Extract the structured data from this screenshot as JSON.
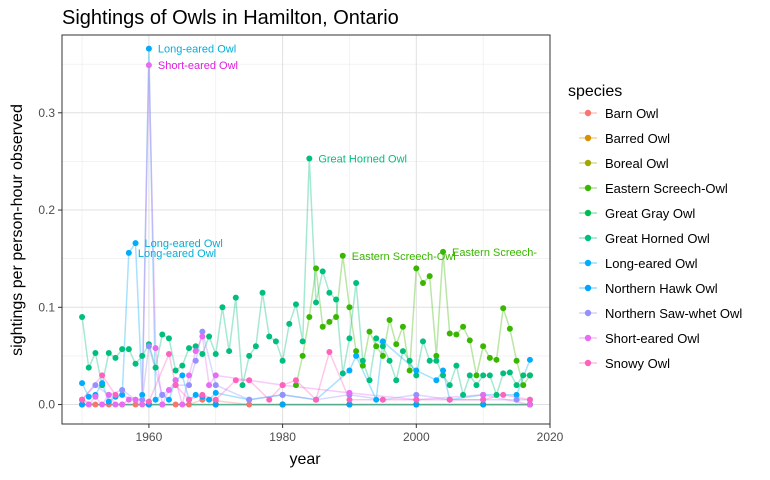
{
  "chart_data": {
    "type": "line",
    "title": "Sightings of Owls in Hamilton, Ontario",
    "xlabel": "year",
    "ylabel": "sightings per person-hour observed",
    "xlim": [
      1947,
      2020
    ],
    "ylim": [
      -0.02,
      0.38
    ],
    "x_ticks": [
      1960,
      1980,
      2000,
      2020
    ],
    "y_ticks": [
      0.0,
      0.1,
      0.2,
      0.3
    ],
    "y_tick_labels": [
      "0.0",
      "0.1",
      "0.2",
      "0.3"
    ],
    "grid": true,
    "legend_title": "species",
    "legend_position": "right",
    "series": [
      {
        "name": "Barn Owl",
        "color": "#F8766D",
        "x": [
          1950,
          1952,
          1954,
          1956,
          1958,
          1960,
          1962,
          1964,
          1966,
          1968,
          1970,
          1975,
          1980,
          1990,
          2000,
          2010,
          2017
        ],
        "y": [
          0.005,
          0,
          0,
          0,
          0,
          0,
          0,
          0,
          0,
          0.005,
          0.004,
          0,
          0,
          0,
          0,
          0,
          0
        ]
      },
      {
        "name": "Barred Owl",
        "color": "#D89000",
        "x": [
          1950,
          1960,
          1970,
          1980,
          1990,
          2000,
          2010,
          2017
        ],
        "y": [
          0,
          0,
          0,
          0,
          0,
          0,
          0,
          0
        ]
      },
      {
        "name": "Boreal Owl",
        "color": "#A3A500",
        "x": [
          1950,
          1960,
          1970,
          1980,
          1990,
          2000,
          2010,
          2017
        ],
        "y": [
          0,
          0,
          0,
          0,
          0,
          0,
          0,
          0
        ]
      },
      {
        "name": "Eastern Screech-Owl",
        "color": "#39B600",
        "x": [
          1982,
          1983,
          1984,
          1985,
          1986,
          1987,
          1988,
          1989,
          1990,
          1991,
          1992,
          1993,
          1994,
          1995,
          1996,
          1997,
          1998,
          1999,
          2000,
          2001,
          2002,
          2003,
          2004,
          2005,
          2006,
          2007,
          2008,
          2009,
          2010,
          2011,
          2012,
          2013,
          2014,
          2015,
          2016,
          2017
        ],
        "y": [
          0.02,
          0.05,
          0.09,
          0.14,
          0.08,
          0.085,
          0.09,
          0.153,
          0.1,
          0.055,
          0.04,
          0.075,
          0.06,
          0.05,
          0.087,
          0.062,
          0.08,
          0.035,
          0.14,
          0.125,
          0.132,
          0.05,
          0.157,
          0.073,
          0.072,
          0.08,
          0.066,
          0.03,
          0.06,
          0.048,
          0.046,
          0.099,
          0.078,
          0.045,
          0.02,
          0.03
        ]
      },
      {
        "name": "Great Gray Owl",
        "color": "#00BB4E",
        "x": [
          1950,
          1960,
          1970,
          1980,
          1990,
          2000,
          2010,
          2017
        ],
        "y": [
          0,
          0,
          0,
          0,
          0,
          0,
          0,
          0
        ]
      },
      {
        "name": "Great Horned Owl",
        "color": "#00BF7D",
        "x": [
          1950,
          1951,
          1952,
          1953,
          1954,
          1955,
          1956,
          1957,
          1958,
          1959,
          1960,
          1961,
          1962,
          1963,
          1964,
          1965,
          1966,
          1967,
          1968,
          1969,
          1970,
          1971,
          1972,
          1973,
          1974,
          1975,
          1976,
          1977,
          1978,
          1979,
          1980,
          1981,
          1982,
          1983,
          1984,
          1985,
          1986,
          1987,
          1988,
          1989,
          1990,
          1991,
          1992,
          1993,
          1994,
          1995,
          1996,
          1997,
          1998,
          1999,
          2000,
          2001,
          2002,
          2003,
          2004,
          2005,
          2006,
          2007,
          2008,
          2009,
          2010,
          2011,
          2012,
          2013,
          2014,
          2015,
          2016,
          2017
        ],
        "y": [
          0.09,
          0.038,
          0.053,
          0.02,
          0.053,
          0.048,
          0.057,
          0.057,
          0.042,
          0.05,
          0.062,
          0.038,
          0.072,
          0.068,
          0.035,
          0.04,
          0.058,
          0.06,
          0.052,
          0.07,
          0.052,
          0.1,
          0.055,
          0.11,
          0.02,
          0.05,
          0.06,
          0.115,
          0.07,
          0.065,
          0.045,
          0.083,
          0.103,
          0.065,
          0.253,
          0.105,
          0.137,
          0.115,
          0.108,
          0.032,
          0.068,
          0.125,
          0.045,
          0.025,
          0.068,
          0.06,
          0.045,
          0.025,
          0.055,
          0.045,
          0.03,
          0.065,
          0.045,
          0.045,
          0.03,
          0.02,
          0.04,
          0.01,
          0.03,
          0.02,
          0.03,
          0.03,
          0.01,
          0.032,
          0.033,
          0.02,
          0.03,
          0.03
        ]
      },
      {
        "name": "Long-eared Owl",
        "color": "#00ACFC",
        "label_color": "#00B0D8",
        "x": [
          1950,
          1951,
          1952,
          1953,
          1954,
          1955,
          1956,
          1957,
          1958,
          1959,
          1960,
          1961,
          1962,
          1963,
          1964,
          1965,
          1966,
          1967,
          1968,
          1969,
          1970,
          1975,
          1980,
          1985,
          1990,
          1991,
          1994,
          1995,
          2000,
          2003,
          2004,
          2005,
          2010,
          2015,
          2017
        ],
        "y": [
          0.022,
          0.008,
          0.01,
          0.022,
          0.003,
          0.008,
          0.01,
          0.156,
          0.166,
          0.01,
          0.366,
          0.005,
          0.01,
          0.005,
          0.025,
          0.03,
          0.005,
          0.01,
          0.008,
          0.005,
          0.012,
          0.005,
          0.01,
          0.005,
          0.035,
          0.05,
          0.005,
          0.065,
          0.035,
          0.025,
          0.035,
          0.005,
          0.01,
          0.01,
          0.046
        ]
      },
      {
        "name": "Northern Hawk Owl",
        "color": "#00A5FF",
        "x": [
          1950,
          1960,
          1970,
          1980,
          1990,
          2000,
          2010,
          2017
        ],
        "y": [
          0,
          0,
          0,
          0,
          0,
          0,
          0,
          0
        ]
      },
      {
        "name": "Northern Saw-whet Owl",
        "color": "#9590FF",
        "x": [
          1950,
          1952,
          1954,
          1956,
          1958,
          1959,
          1960,
          1962,
          1964,
          1966,
          1967,
          1968,
          1970,
          1975,
          1980,
          1985,
          1990,
          1995,
          2000,
          2005,
          2010,
          2015,
          2017
        ],
        "y": [
          0.005,
          0.02,
          0.01,
          0.015,
          0.005,
          0.005,
          0.06,
          0.01,
          0.02,
          0.02,
          0.045,
          0.075,
          0.02,
          0.005,
          0.01,
          0.005,
          0.01,
          0.005,
          0.01,
          0.005,
          0.005,
          0.005,
          0.005
        ]
      },
      {
        "name": "Short-eared Owl",
        "color": "#E76BF3",
        "label_color": "#E020E0",
        "x": [
          1950,
          1951,
          1952,
          1953,
          1954,
          1955,
          1956,
          1957,
          1958,
          1959,
          1960,
          1961,
          1962,
          1963,
          1964,
          1965,
          1966,
          1967,
          1968,
          1969,
          1970,
          1980,
          1990,
          2000,
          2010,
          2017
        ],
        "y": [
          0.005,
          0,
          0.008,
          0,
          0.01,
          0,
          0,
          0.005,
          0.005,
          0,
          0.349,
          0.058,
          0,
          0.015,
          0.025,
          0,
          0.03,
          0.055,
          0.07,
          0.02,
          0.03,
          0.02,
          0.012,
          0.005,
          0.01,
          0
        ]
      },
      {
        "name": "Snowy Owl",
        "color": "#FF62BC",
        "x": [
          1950,
          1953,
          1955,
          1960,
          1963,
          1964,
          1966,
          1968,
          1970,
          1973,
          1975,
          1978,
          1980,
          1982,
          1985,
          1987,
          1990,
          1995,
          2000,
          2005,
          2010,
          2013,
          2017
        ],
        "y": [
          0.005,
          0.03,
          0.01,
          0.003,
          0.052,
          0.02,
          0.005,
          0.01,
          0.005,
          0.025,
          0.025,
          0.005,
          0.02,
          0.025,
          0.005,
          0.054,
          0.005,
          0.005,
          0.005,
          0.005,
          0.005,
          0.01,
          0.005
        ]
      }
    ],
    "annotations": [
      {
        "text": "Long-eared Owl",
        "series": "Long-eared Owl",
        "x": 1960,
        "y": 0.366
      },
      {
        "text": "Short-eared Owl",
        "series": "Short-eared Owl",
        "x": 1960,
        "y": 0.349
      },
      {
        "text": "Great Horned Owl",
        "series": "Great Horned Owl",
        "x": 1984,
        "y": 0.253
      },
      {
        "text": "Long-eared Owl",
        "series": "Long-eared Owl",
        "x": 1958,
        "y": 0.166
      },
      {
        "text": "Long-eared Owl",
        "series": "Long-eared Owl",
        "x": 1957,
        "y": 0.156
      },
      {
        "text": "Eastern Screech-Owl",
        "series": "Eastern Screech-Owl",
        "x": 1989,
        "y": 0.153
      },
      {
        "text": "Eastern Screech-",
        "series": "Eastern Screech-Owl",
        "x": 2004,
        "y": 0.157
      }
    ]
  }
}
